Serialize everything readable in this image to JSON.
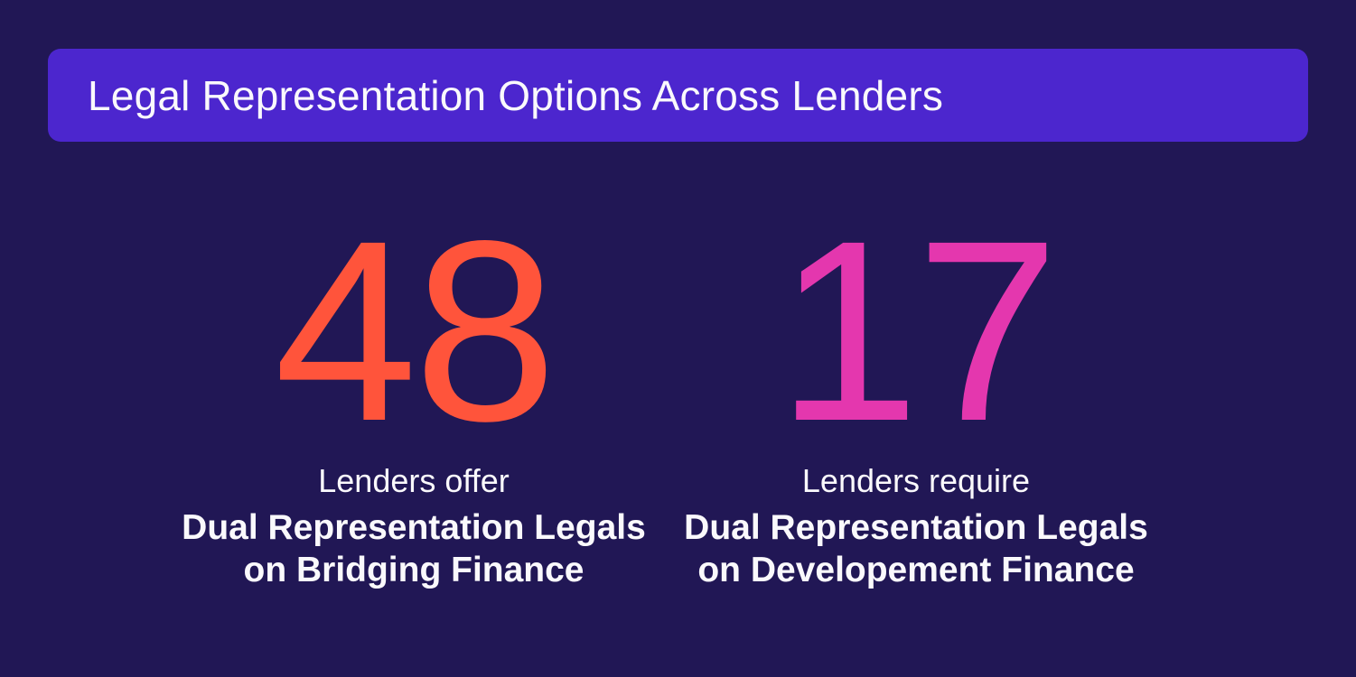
{
  "page": {
    "background": "#211755"
  },
  "header": {
    "title": "Legal Representation Options Across Lenders",
    "background": "#4C26CE"
  },
  "stats": [
    {
      "value": "48",
      "color": "#FF543B",
      "label": "Lenders offer",
      "sublabel_line1": "Dual Representation Legals",
      "sublabel_line2": "on Bridging Finance"
    },
    {
      "value": "17",
      "color": "#E437AE",
      "label": "Lenders require",
      "sublabel_line1": "Dual Representation Legals",
      "sublabel_line2": "on Developement Finance"
    }
  ],
  "chart_data": {
    "type": "table",
    "title": "Legal Representation Options Across Lenders",
    "categories": [
      "Dual Representation Legals on Bridging Finance",
      "Dual Representation Legals on Developement Finance"
    ],
    "values": [
      48,
      17
    ],
    "series": [
      {
        "name": "Lenders offer Dual Representation Legals on Bridging Finance",
        "values": [
          48
        ],
        "color": "#FF543B"
      },
      {
        "name": "Lenders require Dual Representation Legals on Developement Finance",
        "values": [
          17
        ],
        "color": "#E437AE"
      }
    ],
    "legend_position": "none",
    "grid": false
  }
}
